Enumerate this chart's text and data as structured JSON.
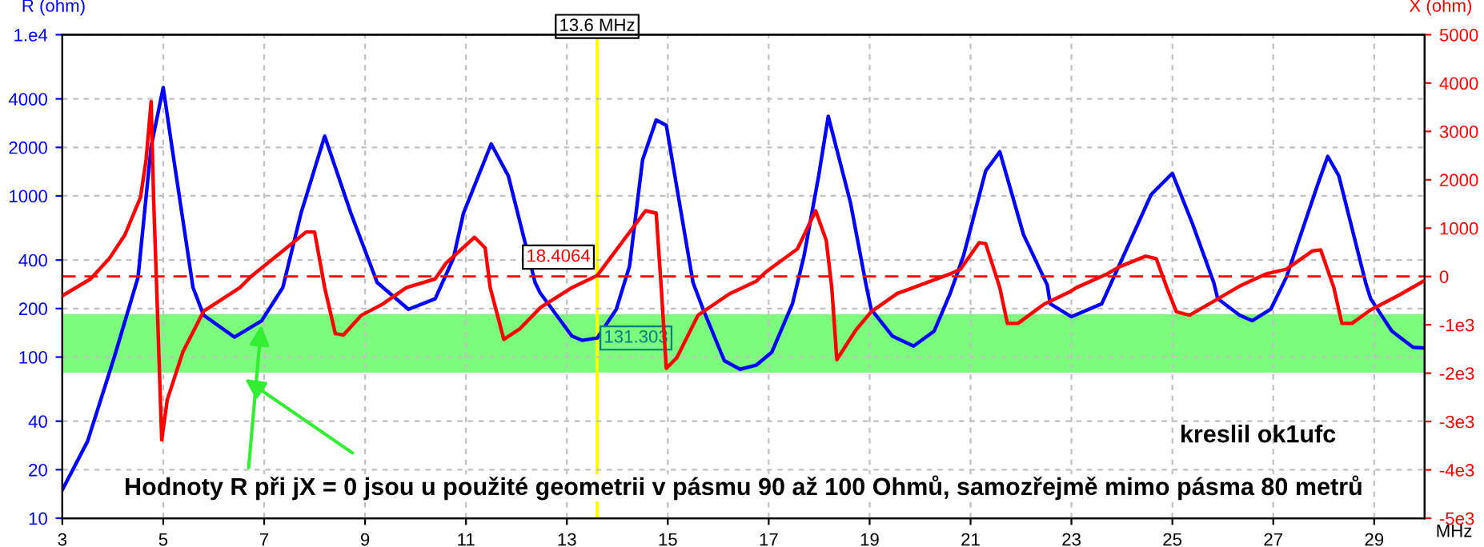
{
  "chart_data": {
    "type": "line",
    "xlabel": "MHz",
    "ylabel": "R (ohm)",
    "y2label": "X (ohm)",
    "log": "y",
    "grid": true,
    "legend": false,
    "marker": "none",
    "line_style": "solid",
    "xlim": [
      3,
      30
    ],
    "xticks": [
      3,
      5,
      7,
      9,
      11,
      13,
      15,
      17,
      19,
      21,
      23,
      25,
      27,
      29
    ],
    "ylim": [
      10,
      10000
    ],
    "yticks": [
      10,
      20,
      40,
      100,
      200,
      400,
      1000,
      2000,
      4000,
      {
        "value": 10000,
        "label": "1.e4"
      }
    ],
    "y2lim": [
      -5000,
      5000
    ],
    "y2ticks": [
      {
        "value": -5000,
        "label": "-5e3"
      },
      {
        "value": -4000,
        "label": "-4e3"
      },
      {
        "value": -3000,
        "label": "-3e3"
      },
      {
        "value": -2000,
        "label": "-2e3"
      },
      {
        "value": -1000,
        "label": "-1e3"
      },
      0,
      1000,
      2000,
      3000,
      4000,
      5000
    ],
    "series": [
      {
        "color": "#0000ff",
        "x": [
          3,
          3.5,
          4.03,
          4.5,
          4.76,
          5.0,
          5.18,
          5.59,
          5.8,
          6.41,
          6.95,
          7.37,
          7.73,
          8.2,
          8.72,
          9.24,
          9.86,
          10.39,
          10.75,
          10.95,
          11.5,
          11.84,
          12.37,
          12.47,
          13.1,
          13.3,
          13.6,
          13.98,
          14.24,
          14.5,
          14.77,
          14.97,
          15.5,
          15.7,
          16.12,
          16.43,
          16.75,
          17.06,
          17.47,
          17.7,
          17.99,
          18.18,
          18.62,
          18.93,
          19.03,
          19.45,
          19.87,
          20.28,
          20.6,
          20.86,
          21.3,
          21.58,
          22.05,
          22.52,
          22.58,
          23.0,
          23.6,
          24.03,
          24.58,
          25.0,
          25.4,
          25.82,
          25.9,
          26.33,
          26.58,
          26.95,
          27.26,
          27.89,
          28.08,
          28.3,
          28.83,
          28.93,
          29.35,
          29.77,
          29.97
        ],
        "values": [
          15,
          30,
          100,
          312,
          2020,
          4700,
          1940,
          270,
          182,
          133,
          168,
          270,
          780,
          2350,
          780,
          290,
          198,
          230,
          410,
          780,
          2100,
          1330,
          290,
          250,
          135,
          127,
          131.303,
          198,
          365,
          1670,
          2960,
          2740,
          290,
          198,
          95,
          84,
          89,
          107,
          214,
          424,
          1330,
          3120,
          910,
          280,
          198,
          135,
          117,
          145,
          250,
          424,
          1430,
          1880,
          575,
          280,
          214,
          178,
          214,
          424,
          1020,
          1380,
          670,
          290,
          230,
          182,
          168,
          198,
          313,
          1200,
          1760,
          1330,
          290,
          230,
          145,
          115,
          114
        ]
      },
      {
        "color": "#ff0000",
        "axis": "y2",
        "x": [
          3,
          3.56,
          3.93,
          4.24,
          4.55,
          4.66,
          4.76,
          4.81,
          4.87,
          4.97,
          5.08,
          5.39,
          5.8,
          6.52,
          6.74,
          7.37,
          7.83,
          8.0,
          8.2,
          8.41,
          8.57,
          8.93,
          9.35,
          9.82,
          10.39,
          10.6,
          11.17,
          11.38,
          11.48,
          11.75,
          12.07,
          12.48,
          13.1,
          13.6,
          14.56,
          14.77,
          14.87,
          14.97,
          15.18,
          15.6,
          16.22,
          16.75,
          16.95,
          17.57,
          17.93,
          18.14,
          18.25,
          18.35,
          18.72,
          19.03,
          19.55,
          19.74,
          20.59,
          20.8,
          21.17,
          21.3,
          21.58,
          21.73,
          21.94,
          22.46,
          22.98,
          23.1,
          23.7,
          23.95,
          24.47,
          24.68,
          24.89,
          25.08,
          25.34,
          25.81,
          26.33,
          26.85,
          27.26,
          27.78,
          27.94,
          28.2,
          28.36,
          28.56,
          28.93,
          29.45,
          29.97
        ],
        "values": [
          -400,
          -50,
          370,
          860,
          1640,
          2410,
          3620,
          1580,
          -240,
          -3380,
          -2550,
          -1560,
          -720,
          -230,
          0,
          530,
          920,
          920,
          -230,
          -1180,
          -1210,
          -800,
          -570,
          -230,
          -50,
          270,
          810,
          590,
          -230,
          -1300,
          -1080,
          -640,
          -230,
          18.4064,
          1360,
          1310,
          -230,
          -1900,
          -1680,
          -800,
          -360,
          -100,
          100,
          570,
          1360,
          750,
          -230,
          -1720,
          -1120,
          -730,
          -350,
          -280,
          50,
          150,
          700,
          680,
          -230,
          -970,
          -970,
          -570,
          -310,
          -230,
          50,
          200,
          420,
          370,
          -230,
          -730,
          -800,
          -520,
          -200,
          50,
          150,
          530,
          550,
          -230,
          -970,
          -970,
          -690,
          -410,
          -100
        ]
      }
    ],
    "ref_lines": [
      {
        "axis": "x",
        "value": 13.6,
        "label": "13.6 MHz",
        "color": "#ffff00",
        "line_style": "solid"
      },
      {
        "axis": "y2",
        "value": 0,
        "color": "#ff0000",
        "line_style": "dashed"
      }
    ],
    "bands": [
      {
        "axis": "y",
        "from": 80,
        "to": 185,
        "color": "#7cfc7c"
      }
    ],
    "annotations": [
      "18.4064",
      {
        "text": "131.303",
        "x": 13.6,
        "y": 131.303
      },
      "kreslil ok1ufc",
      {
        "x": 6.95,
        "y": 168,
        "text": "Hodnoty R při jX = 0 jsou u použité geometrii v pásmu 90 až 100 Ohmů, samozřejmě mimo pásma 80 metrů"
      }
    ]
  }
}
